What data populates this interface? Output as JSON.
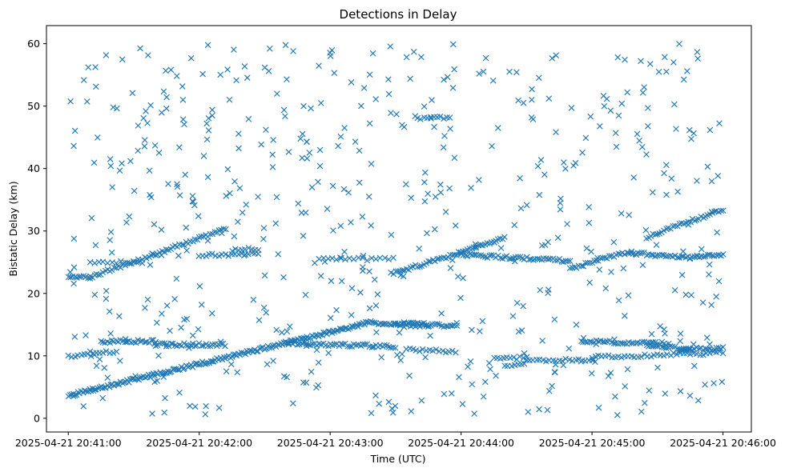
{
  "chart_data": {
    "type": "scatter",
    "title": "Detections in Delay",
    "xlabel": "Time (UTC)",
    "ylabel": "Bistatic Delay (km)",
    "xlim": [
      "2025-04-21 20:40:50",
      "2025-04-21 20:46:13"
    ],
    "ylim": [
      -2.2,
      62.9
    ],
    "x_ticks": [
      "2025-04-21 20:41:00",
      "2025-04-21 20:42:00",
      "2025-04-21 20:43:00",
      "2025-04-21 20:44:00",
      "2025-04-21 20:45:00",
      "2025-04-21 20:46:00"
    ],
    "y_ticks": [
      0,
      10,
      20,
      30,
      40,
      50,
      60
    ],
    "grid": false,
    "marker": "x",
    "color": "#1f77b4",
    "series": [
      {
        "tracks": [
          {
            "start": "2025-04-21 20:41:00",
            "end": "2025-04-21 20:43:20",
            "y0": 3.6,
            "y1": 15.5,
            "step_seconds": 0.75
          },
          {
            "start": "2025-04-21 20:43:20",
            "end": "2025-04-21 20:43:45",
            "y0": 15.3,
            "y1": 15.0,
            "step_seconds": 1.0
          },
          {
            "start": "2025-04-21 20:41:00",
            "end": "2025-04-21 20:41:10",
            "y0": 22.6,
            "y1": 22.6,
            "step_seconds": 1.0
          },
          {
            "start": "2025-04-21 20:41:10",
            "end": "2025-04-21 20:42:12",
            "y0": 22.6,
            "y1": 30.3,
            "step_seconds": 1.0
          },
          {
            "start": "2025-04-21 20:43:28",
            "end": "2025-04-21 20:44:00",
            "y0": 23.2,
            "y1": 26.5,
            "step_seconds": 1.0
          },
          {
            "start": "2025-04-21 20:44:00",
            "end": "2025-04-21 20:44:20",
            "y0": 26.5,
            "y1": 29.0,
            "step_seconds": 1.0
          },
          {
            "start": "2025-04-21 20:44:00",
            "end": "2025-04-21 20:44:50",
            "y0": 26.2,
            "y1": 25.2,
            "step_seconds": 1.0
          },
          {
            "start": "2025-04-21 20:44:50",
            "end": "2025-04-21 20:45:18",
            "y0": 24.0,
            "y1": 26.8,
            "step_seconds": 1.0
          },
          {
            "start": "2025-04-21 20:45:18",
            "end": "2025-04-21 20:45:45",
            "y0": 26.5,
            "y1": 25.7,
            "step_seconds": 1.0
          },
          {
            "start": "2025-04-21 20:45:45",
            "end": "2025-04-21 20:46:00",
            "y0": 25.9,
            "y1": 26.3,
            "step_seconds": 1.0
          },
          {
            "start": "2025-04-21 20:45:25",
            "end": "2025-04-21 20:46:00",
            "y0": 29.0,
            "y1": 33.5,
            "step_seconds": 1.0
          },
          {
            "start": "2025-04-21 20:42:00",
            "end": "2025-04-21 20:42:28",
            "y0": 26.2,
            "y1": 26.3,
            "step_seconds": 1.5
          },
          {
            "start": "2025-04-21 20:42:15",
            "end": "2025-04-21 20:42:28",
            "y0": 27.0,
            "y1": 27.2,
            "step_seconds": 1.5
          },
          {
            "start": "2025-04-21 20:41:10",
            "end": "2025-04-21 20:41:35",
            "y0": 25.0,
            "y1": 25.0,
            "step_seconds": 2.0
          },
          {
            "start": "2025-04-21 20:42:55",
            "end": "2025-04-21 20:43:30",
            "y0": 25.5,
            "y1": 25.5,
            "step_seconds": 2.0
          },
          {
            "start": "2025-04-21 20:41:15",
            "end": "2025-04-21 20:41:40",
            "y0": 12.3,
            "y1": 12.3,
            "step_seconds": 1.0
          },
          {
            "start": "2025-04-21 20:41:40",
            "end": "2025-04-21 20:42:12",
            "y0": 11.8,
            "y1": 11.8,
            "step_seconds": 1.0
          },
          {
            "start": "2025-04-21 20:42:40",
            "end": "2025-04-21 20:43:30",
            "y0": 12.0,
            "y1": 11.5,
            "step_seconds": 1.0
          },
          {
            "start": "2025-04-21 20:43:30",
            "end": "2025-04-21 20:43:58",
            "y0": 15.0,
            "y1": 14.8,
            "step_seconds": 1.0
          },
          {
            "start": "2025-04-21 20:43:35",
            "end": "2025-04-21 20:43:58",
            "y0": 11.0,
            "y1": 10.7,
            "step_seconds": 1.5
          },
          {
            "start": "2025-04-21 20:44:15",
            "end": "2025-04-21 20:44:30",
            "y0": 9.8,
            "y1": 9.6,
            "step_seconds": 1.5
          },
          {
            "start": "2025-04-21 20:44:30",
            "end": "2025-04-21 20:45:00",
            "y0": 9.3,
            "y1": 9.4,
            "step_seconds": 1.5
          },
          {
            "start": "2025-04-21 20:44:55",
            "end": "2025-04-21 20:45:35",
            "y0": 12.3,
            "y1": 12.0,
            "step_seconds": 1.0
          },
          {
            "start": "2025-04-21 20:45:25",
            "end": "2025-04-21 20:45:45",
            "y0": 11.8,
            "y1": 11.0,
            "step_seconds": 1.0
          },
          {
            "start": "2025-04-21 20:45:00",
            "end": "2025-04-21 20:46:00",
            "y0": 9.8,
            "y1": 10.5,
            "step_seconds": 1.5
          },
          {
            "start": "2025-04-21 20:45:40",
            "end": "2025-04-21 20:46:00",
            "y0": 11.0,
            "y1": 11.2,
            "step_seconds": 1.0
          },
          {
            "start": "2025-04-21 20:41:00",
            "end": "2025-04-21 20:41:12",
            "y0": 9.8,
            "y1": 10.2,
            "step_seconds": 1.5
          },
          {
            "start": "2025-04-21 20:41:10",
            "end": "2025-04-21 20:41:22",
            "y0": 10.5,
            "y1": 10.5,
            "step_seconds": 1.5
          },
          {
            "start": "2025-04-21 20:43:40",
            "end": "2025-04-21 20:43:55",
            "y0": 48.1,
            "y1": 48.1,
            "step_seconds": 1.5
          },
          {
            "start": "2025-04-21 20:44:20",
            "end": "2025-04-21 20:44:30",
            "y0": 8.5,
            "y1": 8.5,
            "step_seconds": 1.5
          }
        ],
        "noise": {
          "start": "2025-04-21 20:41:00",
          "end": "2025-04-21 20:46:00",
          "count": 560,
          "y_min": 0.5,
          "y_max": 60.0,
          "seed": 20250421
        }
      }
    ]
  }
}
